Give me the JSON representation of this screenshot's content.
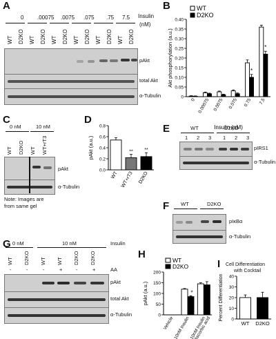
{
  "panels": {
    "A": {
      "letter": "A",
      "conc_label_top": "Insulin",
      "conc_label_bottom": "(nM)",
      "concentrations": [
        "0",
        ".00075",
        ".0075",
        ".075",
        ".75",
        "7.5"
      ],
      "genotypes": [
        "WT",
        "D2KO"
      ],
      "blots": [
        "pAkt",
        "total Akt",
        "α-Tubulin"
      ]
    },
    "B": {
      "letter": "B",
      "legend": [
        "WT",
        "D2KO"
      ],
      "asterisk": "*"
    },
    "C": {
      "letter": "C",
      "conditions": [
        "0 nM",
        "10 nM"
      ],
      "lanes": [
        "WT",
        "D2KO",
        "WT",
        "WT+rT3"
      ],
      "blots": [
        "pAkt",
        "α-Tubulin"
      ],
      "note_line1": "Note: Images are",
      "note_line2": "from same gel"
    },
    "D": {
      "letter": "D",
      "asterisks": "**"
    },
    "E": {
      "letter": "E",
      "groups": [
        "WT",
        "D2KO"
      ],
      "lane_numbers": [
        "1",
        "2",
        "3",
        "1",
        "2",
        "3"
      ],
      "blots": [
        "pIRS1",
        "α-Tubulin"
      ]
    },
    "F": {
      "letter": "F",
      "groups": [
        "WT",
        "D2KO"
      ],
      "blots": [
        "pIκBα",
        "α-Tubulin"
      ]
    },
    "G": {
      "letter": "G",
      "conditions": [
        "0 nM",
        "10 nM"
      ],
      "insulin_label": "Insulin",
      "lanes": [
        "WT",
        "D2KO",
        "WT",
        "WT",
        "D2KO",
        "D2KO"
      ],
      "aa_signs": [
        "-",
        "-",
        "-",
        "+",
        "-",
        "+"
      ],
      "aa_label": "AA",
      "blots": [
        "pAkt",
        "total Akt",
        "α-Tubulin"
      ]
    },
    "H": {
      "letter": "H",
      "legend": [
        "WT",
        "D2KO"
      ],
      "asterisk": "*"
    },
    "I": {
      "letter": "I",
      "title_line1": "Cell Differentiation",
      "title_line2": "with Cocktail"
    }
  },
  "chart_data": [
    {
      "panel": "B",
      "type": "bar",
      "categories": [
        "0",
        "0.00075",
        "0.0075",
        "0.075",
        "0.75",
        "7.5"
      ],
      "series": [
        {
          "name": "WT",
          "values": [
            0.003,
            0.02,
            0.025,
            0.03,
            0.175,
            0.36
          ],
          "errors": [
            0.002,
            0.004,
            0.004,
            0.005,
            0.015,
            0.01
          ]
        },
        {
          "name": "D2KO",
          "values": [
            0.002,
            0.015,
            0.01,
            0.015,
            0.1,
            0.22
          ],
          "errors": [
            0.002,
            0.003,
            0.003,
            0.004,
            0.015,
            0.015
          ]
        }
      ],
      "significant": [
        4,
        5
      ],
      "xlabel": "Insulin (nM)",
      "ylabel": "Akt phosphorylation (a.u.)",
      "yticks": [
        "0",
        "0.05",
        "0.10",
        "0.15",
        "0.20",
        "0.25",
        "0.30",
        "0.35",
        "0.40"
      ],
      "ylim": [
        0,
        0.4
      ],
      "colors": {
        "WT": "#ffffff",
        "D2KO": "#000000"
      }
    },
    {
      "panel": "D",
      "type": "bar",
      "categories": [
        "WT",
        "WT+rT3",
        "D2KO"
      ],
      "values": [
        0.54,
        0.22,
        0.24
      ],
      "errors": [
        0.04,
        0.06,
        0.07
      ],
      "fills": [
        "#ffffff",
        "#777777",
        "#000000"
      ],
      "significant": [
        1,
        2
      ],
      "ylabel": "pAkt (a.u.)",
      "yticks": [
        "0.0",
        "0.2",
        "0.4",
        "0.6",
        "0.8"
      ],
      "ylim": [
        0,
        0.8
      ]
    },
    {
      "panel": "H",
      "type": "bar",
      "categories": [
        "Vehicle",
        "10nM Insulin",
        "10nM Insulin +Ascorbic acid"
      ],
      "series": [
        {
          "name": "WT",
          "values": [
            0,
            120,
            145
          ],
          "errors": [
            0,
            3,
            5
          ]
        },
        {
          "name": "D2KO",
          "values": [
            0,
            85,
            140
          ],
          "errors": [
            0,
            4,
            15
          ]
        }
      ],
      "significant": [
        1
      ],
      "ylabel": "pAkt (a.u.)",
      "yticks": [
        "0",
        "50",
        "100",
        "150",
        "200"
      ],
      "ylim": [
        0,
        200
      ]
    },
    {
      "panel": "I",
      "type": "bar",
      "categories": [
        "WT",
        "D2KO"
      ],
      "values": [
        20,
        20
      ],
      "errors": [
        2.5,
        5
      ],
      "fills": [
        "#ffffff",
        "#000000"
      ],
      "ylabel": "Percent Differentiation",
      "yticks": [
        "0",
        "10",
        "20",
        "30",
        "40"
      ],
      "ylim": [
        0,
        40
      ]
    }
  ]
}
